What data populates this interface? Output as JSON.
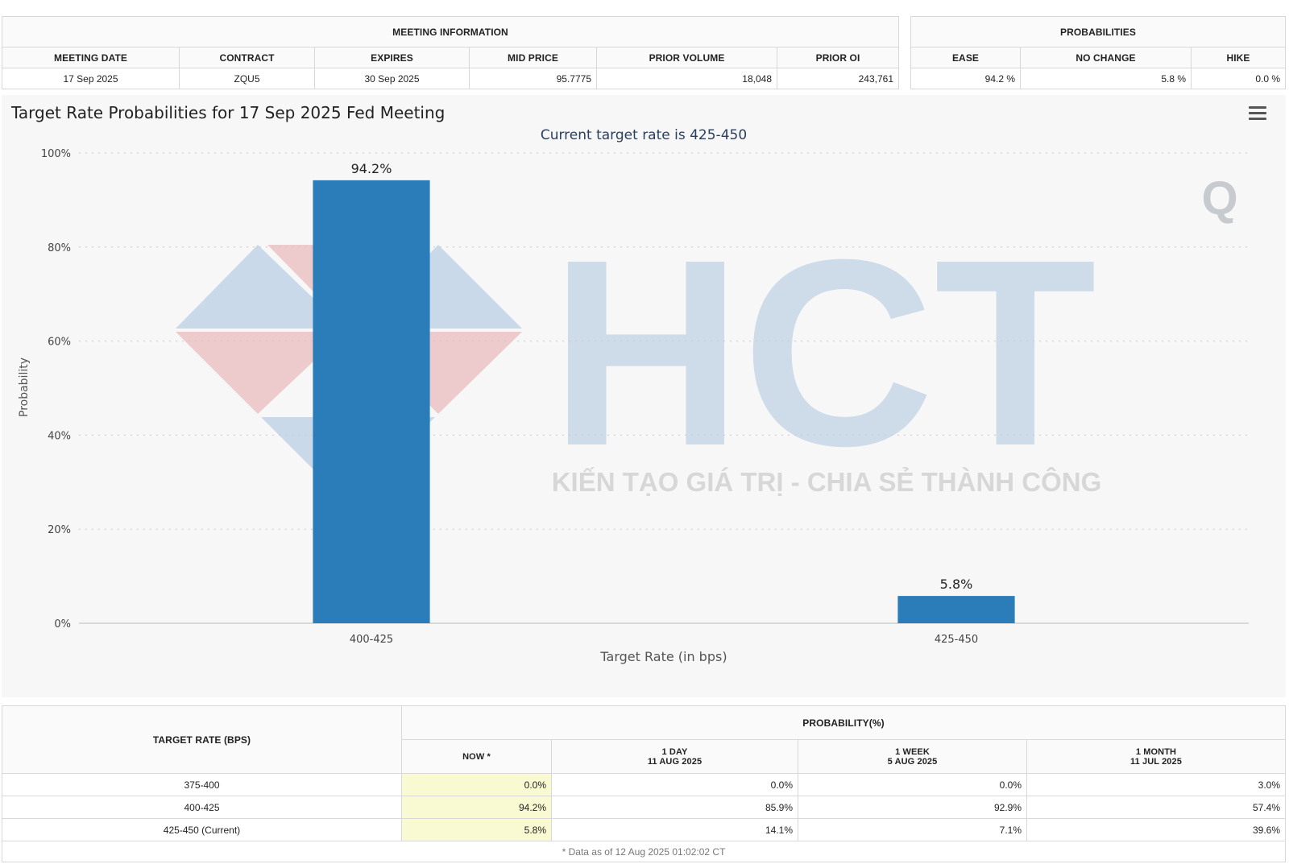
{
  "meeting_info": {
    "group_label": "MEETING INFORMATION",
    "headers": [
      "MEETING DATE",
      "CONTRACT",
      "EXPIRES",
      "MID PRICE",
      "PRIOR VOLUME",
      "PRIOR OI"
    ],
    "row": [
      "17 Sep 2025",
      "ZQU5",
      "30 Sep 2025",
      "95.7775",
      "18,048",
      "243,761"
    ]
  },
  "probabilities": {
    "group_label": "PROBABILITIES",
    "headers": [
      "EASE",
      "NO CHANGE",
      "HIKE"
    ],
    "row": [
      "94.2 %",
      "5.8 %",
      "0.0 %"
    ]
  },
  "chart_data": {
    "type": "bar",
    "title": "Target Rate Probabilities for 17 Sep 2025 Fed Meeting",
    "subtitle": "Current target rate is 425-450",
    "categories": [
      "400-425",
      "425-450"
    ],
    "values": [
      94.2,
      5.8
    ],
    "data_labels": [
      "94.2%",
      "5.8%"
    ],
    "xlabel": "Target Rate (in bps)",
    "ylabel": "Probability",
    "ylim": [
      0,
      100
    ],
    "yticks": [
      0,
      20,
      40,
      60,
      80,
      100
    ],
    "ytick_labels": [
      "0%",
      "20%",
      "40%",
      "60%",
      "80%",
      "100%"
    ],
    "grid": true,
    "bar_color": "#2a7db8"
  },
  "watermark": {
    "brand": "HCT",
    "tagline": "KIẾN TẠO GIÁ TRỊ - CHIA SẺ THÀNH CÔNG",
    "corner_mark": "Q"
  },
  "history": {
    "target_rate_header": "TARGET RATE (BPS)",
    "probability_header": "PROBABILITY(%)",
    "columns": [
      {
        "label": "NOW *",
        "date": ""
      },
      {
        "label": "1 DAY",
        "date": "11 AUG 2025"
      },
      {
        "label": "1 WEEK",
        "date": "5 AUG 2025"
      },
      {
        "label": "1 MONTH",
        "date": "11 JUL 2025"
      }
    ],
    "rows": [
      {
        "rate": "375-400",
        "values": [
          "0.0%",
          "0.0%",
          "0.0%",
          "3.0%"
        ]
      },
      {
        "rate": "400-425",
        "values": [
          "94.2%",
          "85.9%",
          "92.9%",
          "57.4%"
        ]
      },
      {
        "rate": "425-450 (Current)",
        "values": [
          "5.8%",
          "14.1%",
          "7.1%",
          "39.6%"
        ]
      }
    ],
    "note": "* Data as of 12 Aug 2025 01:02:02 CT"
  }
}
